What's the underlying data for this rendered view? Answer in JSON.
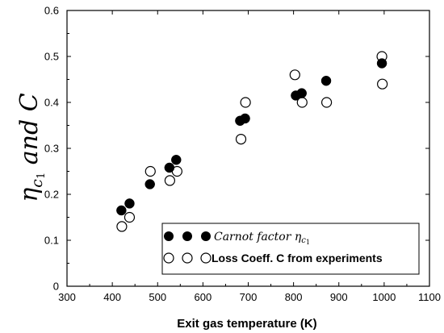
{
  "chart_data": {
    "type": "scatter",
    "xlabel": "Exit gas temperature (K)",
    "ylabel": "ηc1 and C",
    "ylabel_parts": {
      "main": "η",
      "sub": "c",
      "subsub": "1",
      "rest": " and C"
    },
    "xlim": [
      300,
      1100
    ],
    "ylim": [
      0,
      0.6
    ],
    "xticks": [
      "300",
      "400",
      "500",
      "600",
      "700",
      "800",
      "900",
      "1000",
      "1100"
    ],
    "yticks": [
      "0",
      "0.1",
      "0.2",
      "0.3",
      "0.4",
      "0.5",
      "0.6"
    ],
    "grid": false,
    "legend_position": "bottom-right",
    "series": [
      {
        "name": "Carnot factor ηc1",
        "name_parts": {
          "text": "Carnot factor ",
          "main": "η",
          "sub": "c",
          "subsub": "1"
        },
        "marker": "filled-circle",
        "color": "#000000",
        "points": [
          [
            420,
            0.165
          ],
          [
            438,
            0.18
          ],
          [
            483,
            0.222
          ],
          [
            526,
            0.258
          ],
          [
            541,
            0.275
          ],
          [
            682,
            0.36
          ],
          [
            693,
            0.365
          ],
          [
            805,
            0.415
          ],
          [
            818,
            0.42
          ],
          [
            872,
            0.447
          ],
          [
            995,
            0.485
          ]
        ]
      },
      {
        "name": "Loss Coeff. C from experiments",
        "marker": "open-circle",
        "color": "#000000",
        "points": [
          [
            421,
            0.13
          ],
          [
            438,
            0.15
          ],
          [
            484,
            0.25
          ],
          [
            527,
            0.23
          ],
          [
            543,
            0.25
          ],
          [
            684,
            0.32
          ],
          [
            694,
            0.4
          ],
          [
            803,
            0.46
          ],
          [
            819,
            0.4
          ],
          [
            873,
            0.4
          ],
          [
            995,
            0.5
          ],
          [
            996,
            0.44
          ]
        ]
      }
    ]
  }
}
